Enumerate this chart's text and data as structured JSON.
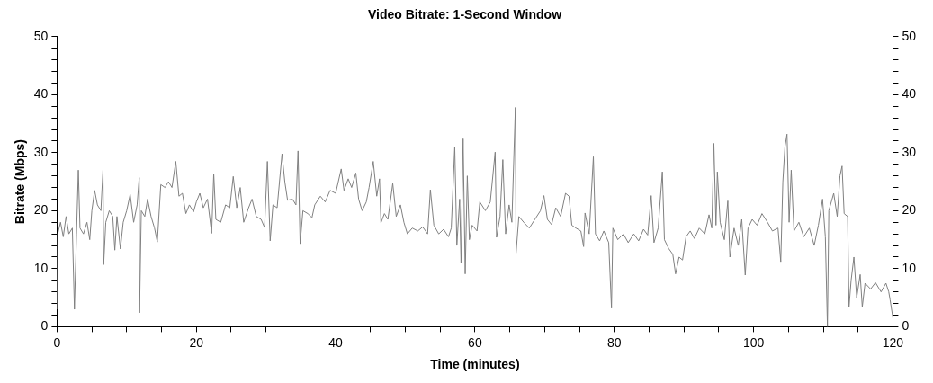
{
  "chart_data": {
    "type": "line",
    "title": "Video Bitrate: 1-Second Window",
    "xlabel": "Time (minutes)",
    "ylabel": "Bitrate (Mbps)",
    "x": [
      0,
      0.1,
      0.5,
      0.9,
      1.3,
      1.7,
      2.2,
      2.5,
      2.8,
      3.06,
      3.3,
      3.8,
      4.3,
      4.7,
      5.0,
      5.4,
      5.8,
      6.3,
      6.6,
      6.7,
      7.0,
      7.5,
      8.0,
      8.3,
      8.6,
      9.1,
      9.5,
      10.0,
      10.5,
      11.0,
      11.5,
      11.8,
      11.85,
      12.1,
      12.6,
      13.0,
      13.5,
      14.0,
      14.4,
      14.9,
      15.5,
      16.0,
      16.5,
      17.05,
      17.5,
      18.0,
      18.5,
      19.0,
      19.6,
      20.0,
      20.5,
      21.0,
      21.6,
      22.2,
      22.5,
      22.8,
      23.5,
      24.2,
      24.8,
      25.3,
      25.8,
      26.3,
      26.8,
      27.5,
      28.0,
      28.6,
      29.3,
      29.8,
      30.2,
      30.6,
      31.0,
      31.6,
      32.3,
      32.7,
      33.1,
      33.8,
      34.3,
      34.6,
      34.9,
      35.3,
      36.0,
      36.6,
      37.0,
      37.8,
      38.5,
      39.2,
      40.0,
      40.8,
      41.2,
      41.8,
      42.3,
      42.9,
      43.3,
      43.8,
      44.4,
      44.8,
      45.4,
      45.9,
      46.3,
      46.5,
      47.0,
      47.5,
      48.2,
      48.7,
      49.3,
      49.8,
      50.3,
      51.0,
      51.8,
      52.5,
      53.2,
      53.6,
      54.1,
      54.8,
      55.5,
      56.2,
      56.6,
      57.1,
      57.4,
      57.8,
      58.0,
      58.3,
      58.6,
      58.9,
      59.2,
      59.6,
      60.3,
      60.7,
      61.5,
      62.2,
      62.9,
      63.1,
      63.6,
      64.0,
      64.4,
      64.9,
      65.3,
      65.8,
      65.9,
      66.3,
      67.0,
      67.8,
      68.6,
      69.4,
      69.9,
      70.4,
      71.0,
      71.6,
      72.3,
      73.0,
      73.5,
      73.9,
      74.5,
      75.2,
      75.6,
      75.8,
      76.4,
      77.0,
      77.3,
      77.9,
      78.5,
      79.2,
      79.6,
      79.8,
      80.5,
      81.3,
      82.0,
      82.8,
      83.5,
      84.2,
      84.8,
      85.3,
      85.7,
      86.3,
      86.9,
      87.2,
      87.8,
      88.4,
      88.8,
      89.3,
      89.8,
      90.3,
      90.9,
      91.5,
      92.2,
      93.0,
      93.6,
      94.0,
      94.3,
      94.6,
      94.8,
      95.2,
      95.8,
      96.3,
      96.6,
      97.2,
      97.8,
      98.3,
      98.8,
      99.2,
      99.8,
      100.5,
      101.2,
      102.0,
      102.7,
      103.5,
      103.9,
      104.2,
      104.5,
      104.8,
      105.1,
      105.4,
      105.8,
      106.5,
      107.2,
      108.0,
      108.7,
      109.3,
      109.9,
      110.3,
      110.6,
      110.8,
      111.5,
      112.0,
      112.4,
      112.7,
      113.0,
      113.5,
      113.7,
      114.0,
      114.4,
      114.8,
      115.3,
      115.6,
      116.0,
      116.8,
      117.5,
      118.3,
      119.0,
      119.4,
      119.6,
      120
    ],
    "series": [
      {
        "color": "#808080",
        "values": [
          3,
          16,
          18,
          15.5,
          19,
          16,
          17,
          3,
          16,
          27,
          17,
          16,
          18,
          15,
          20,
          23.5,
          21,
          20,
          27,
          10.7,
          18,
          20,
          19,
          13.2,
          19,
          13.4,
          18,
          20,
          22.8,
          18,
          21,
          25.7,
          2.4,
          20,
          19,
          22,
          19,
          17,
          14.6,
          24.5,
          24,
          25,
          24,
          28.5,
          22.5,
          23,
          19.5,
          21,
          19.8,
          21.5,
          23,
          20.5,
          22,
          16.1,
          26.4,
          18.5,
          18,
          21,
          20.5,
          25.9,
          20.5,
          24,
          18,
          20.5,
          22,
          19,
          18.5,
          17.1,
          28.5,
          14.8,
          21,
          20.5,
          29.8,
          25,
          21.8,
          22,
          21,
          30.3,
          14.3,
          20,
          19.5,
          18.8,
          21,
          22.5,
          21.5,
          23.5,
          23,
          27.2,
          23.5,
          25.5,
          24,
          26.5,
          22,
          20,
          21.5,
          24,
          28.5,
          22.5,
          25.5,
          17.9,
          19.5,
          18.5,
          24.7,
          19,
          21,
          18,
          16,
          17,
          16.5,
          17.2,
          16,
          23.6,
          17.5,
          16,
          16.8,
          15.5,
          17,
          31,
          14,
          22,
          11,
          32.4,
          9.1,
          26,
          15,
          17.5,
          16.5,
          21.5,
          20,
          21.5,
          30.1,
          15.4,
          19,
          28.8,
          16,
          21,
          18,
          37.8,
          12.7,
          19,
          18,
          17,
          18.5,
          20,
          22.6,
          18.5,
          17.6,
          20.5,
          19,
          23,
          22.5,
          17.5,
          17,
          16.5,
          13.8,
          19.6,
          16,
          29.3,
          16,
          14.8,
          16.5,
          14.5,
          3.2,
          17,
          15,
          16,
          14.5,
          16,
          14.8,
          16.8,
          15.8,
          22.6,
          14.5,
          17,
          26.7,
          15,
          13.5,
          12.5,
          9.1,
          12,
          11.5,
          15.5,
          16.5,
          15.2,
          17,
          16,
          19.3,
          17,
          31.6,
          17.5,
          26.7,
          18,
          15,
          21.7,
          12,
          17,
          14,
          18.5,
          8.9,
          17,
          18.5,
          17.5,
          19.5,
          18,
          16.5,
          17,
          11.2,
          25,
          31,
          33.2,
          18,
          27,
          16.5,
          18,
          15.5,
          17,
          14,
          17.5,
          22,
          15.5,
          0,
          20,
          23,
          19,
          26,
          27.7,
          19.5,
          19,
          3.4,
          8,
          12,
          5,
          9,
          3.4,
          7.5,
          6.5,
          7.6,
          6,
          7.5,
          6,
          4.6,
          1.5
        ]
      }
    ],
    "xlim": [
      0,
      120
    ],
    "xticks": [
      0,
      {
        "value": 5,
        "label": null
      },
      {
        "value": 10,
        "label": null
      },
      {
        "value": 15,
        "label": null
      },
      20,
      {
        "value": 25,
        "label": null
      },
      {
        "value": 30,
        "label": null
      },
      {
        "value": 35,
        "label": null
      },
      40,
      {
        "value": 45,
        "label": null
      },
      {
        "value": 50,
        "label": null
      },
      {
        "value": 55,
        "label": null
      },
      60,
      {
        "value": 65,
        "label": null
      },
      {
        "value": 70,
        "label": null
      },
      {
        "value": 75,
        "label": null
      },
      80,
      {
        "value": 85,
        "label": null
      },
      {
        "value": 90,
        "label": null
      },
      {
        "value": 95,
        "label": null
      },
      100,
      {
        "value": 105,
        "label": null
      },
      {
        "value": 110,
        "label": null
      },
      {
        "value": 115,
        "label": null
      },
      120
    ],
    "ylim": [
      0,
      50
    ],
    "yticks": [
      0,
      {
        "value": 2,
        "label": null
      },
      {
        "value": 4,
        "label": null
      },
      {
        "value": 6,
        "label": null
      },
      {
        "value": 8,
        "label": null
      },
      10,
      {
        "value": 12,
        "label": null
      },
      {
        "value": 14,
        "label": null
      },
      {
        "value": 16,
        "label": null
      },
      {
        "value": 18,
        "label": null
      },
      20,
      {
        "value": 22,
        "label": null
      },
      {
        "value": 24,
        "label": null
      },
      {
        "value": 26,
        "label": null
      },
      {
        "value": 28,
        "label": null
      },
      30,
      {
        "value": 32,
        "label": null
      },
      {
        "value": 34,
        "label": null
      },
      {
        "value": 36,
        "label": null
      },
      {
        "value": 38,
        "label": null
      },
      40,
      {
        "value": 42,
        "label": null
      },
      {
        "value": 44,
        "label": null
      },
      {
        "value": 46,
        "label": null
      },
      {
        "value": 48,
        "label": null
      },
      50
    ],
    "y2lim": [
      0,
      50
    ],
    "y2ticks": [
      0,
      {
        "value": 2,
        "label": null
      },
      {
        "value": 4,
        "label": null
      },
      {
        "value": 6,
        "label": null
      },
      {
        "value": 8,
        "label": null
      },
      10,
      {
        "value": 12,
        "label": null
      },
      {
        "value": 14,
        "label": null
      },
      {
        "value": 16,
        "label": null
      },
      {
        "value": 18,
        "label": null
      },
      20,
      {
        "value": 22,
        "label": null
      },
      {
        "value": 24,
        "label": null
      },
      {
        "value": 26,
        "label": null
      },
      {
        "value": 28,
        "label": null
      },
      30,
      {
        "value": 32,
        "label": null
      },
      {
        "value": 34,
        "label": null
      },
      {
        "value": 36,
        "label": null
      },
      {
        "value": 38,
        "label": null
      },
      40,
      {
        "value": 42,
        "label": null
      },
      {
        "value": 44,
        "label": null
      },
      {
        "value": 46,
        "label": null
      },
      {
        "value": 48,
        "label": null
      },
      50
    ],
    "marker": "none"
  }
}
